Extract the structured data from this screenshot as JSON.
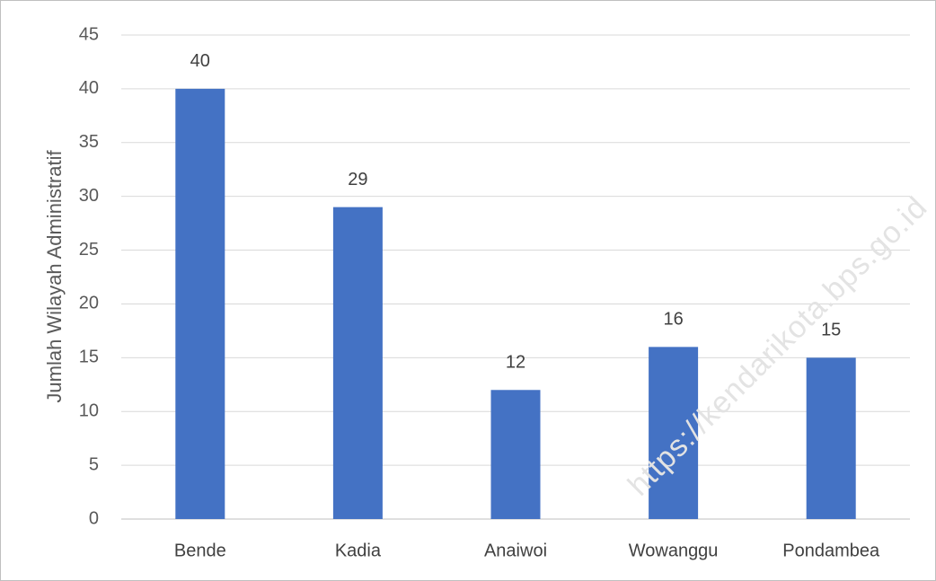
{
  "chart_data": {
    "type": "bar",
    "y_label": "Jumlah Wilayah Administratif",
    "categories": [
      "Bende",
      "Kadia",
      "Anaiwoi",
      "Wowanggu",
      "Pondambea"
    ],
    "values": [
      40,
      29,
      12,
      16,
      15
    ],
    "color": "#4472c4",
    "ylim": [
      0,
      45
    ],
    "yticks": [
      0,
      5,
      10,
      15,
      20,
      25,
      30,
      35,
      40,
      45
    ],
    "grid": true,
    "watermark": "https://kendarikota.bps.go.id"
  }
}
